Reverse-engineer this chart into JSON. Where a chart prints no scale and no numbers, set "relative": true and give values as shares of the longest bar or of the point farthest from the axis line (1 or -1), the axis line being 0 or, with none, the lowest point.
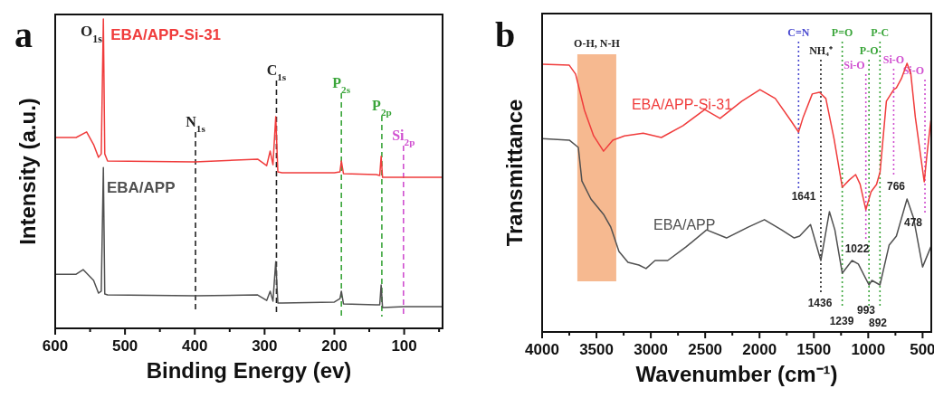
{
  "chart_data": [
    {
      "type": "line",
      "title": "a",
      "xlabel": "Binding Energy (ev)",
      "ylabel": "Intensity (a.u.)",
      "relative": true,
      "tick_labels": "x",
      "xlim": [
        600,
        45
      ],
      "xticks": [
        600,
        {
          "value": 550,
          "label": null
        },
        500,
        {
          "value": 450,
          "label": null
        },
        400,
        {
          "value": 350,
          "label": null
        },
        300,
        {
          "value": 250,
          "label": null
        },
        200,
        {
          "value": 150,
          "label": null
        },
        100,
        {
          "value": 50,
          "label": null
        }
      ],
      "series": [
        {
          "name": "EBA/APP-Si-31",
          "color": "#f03c3c",
          "x": [
            600,
            570,
            555,
            545,
            538,
            534,
            531,
            529,
            525,
            400,
            310,
            297,
            292,
            288,
            284,
            281,
            275,
            200,
            192,
            190,
            187,
            140,
            135,
            133,
            131,
            100,
            45
          ],
          "values": [
            0.617,
            0.617,
            0.635,
            0.594,
            0.553,
            0.564,
            1.0,
            0.564,
            0.541,
            0.538,
            0.547,
            0.526,
            0.573,
            0.529,
            0.684,
            0.506,
            0.503,
            0.503,
            0.506,
            0.541,
            0.5,
            0.497,
            0.494,
            0.556,
            0.488,
            0.488,
            0.488
          ]
        },
        {
          "name": "EBA/APP",
          "color": "#505050",
          "x": [
            600,
            570,
            560,
            545,
            538,
            534,
            531,
            529,
            525,
            400,
            310,
            297,
            292,
            288,
            284,
            281,
            275,
            200,
            192,
            190,
            187,
            140,
            135,
            133,
            131,
            100,
            45
          ],
          "values": [
            0.175,
            0.175,
            0.19,
            0.155,
            0.114,
            0.12,
            0.52,
            0.111,
            0.108,
            0.105,
            0.108,
            0.09,
            0.12,
            0.088,
            0.216,
            0.082,
            0.082,
            0.085,
            0.096,
            0.12,
            0.079,
            0.076,
            0.076,
            0.14,
            0.067,
            0.07,
            0.07
          ]
        }
      ],
      "ref_lines": [
        {
          "axis": "x",
          "value": 399,
          "label": "N$_{1s}$",
          "color": "#222222",
          "line_style": "dashed"
        },
        {
          "axis": "x",
          "value": 283,
          "label": "C$_{1s}$",
          "color": "#222222",
          "line_style": "dashed"
        },
        {
          "axis": "x",
          "value": 190,
          "label": "P$_{2s}$",
          "color": "#3aa53a",
          "line_style": "dashed"
        },
        {
          "axis": "x",
          "value": 132,
          "label": "P$_{2p}$",
          "color": "#3aa53a",
          "line_style": "dashed"
        },
        {
          "axis": "x",
          "value": 101,
          "label": "Si$_{2p}$",
          "color": "#d050d0",
          "line_style": "dashed"
        }
      ],
      "annotations": [
        "O$_{1s}$"
      ]
    },
    {
      "type": "line",
      "title": "b",
      "xlabel": "Wavenumber (cm⁻¹)",
      "ylabel": "Transmittance",
      "relative": true,
      "tick_labels": "x",
      "xlim": [
        4000,
        420
      ],
      "xticks": [
        4000,
        {
          "value": 3750,
          "label": null
        },
        3500,
        {
          "value": 3250,
          "label": null
        },
        3000,
        {
          "value": 2750,
          "label": null
        },
        2500,
        {
          "value": 2250,
          "label": null
        },
        2000,
        {
          "value": 1750,
          "label": null
        },
        1500,
        {
          "value": 1250,
          "label": null
        },
        1000,
        {
          "value": 750,
          "label": null
        },
        500
      ],
      "series": [
        {
          "name": "EBA/APP-Si-31",
          "color": "#f03c3c",
          "x": [
            4000,
            3750,
            3692,
            3610,
            3526,
            3435,
            3350,
            3243,
            3070,
            2903,
            2703,
            2504,
            2363,
            2163,
            1996,
            1855,
            1714,
            1641,
            1598,
            1515,
            1449,
            1390,
            1315,
            1239,
            1174,
            1116,
            1075,
            1022,
            974,
            924,
            891,
            833,
            766,
            741,
            695,
            643,
            608,
            567,
            485,
            459,
            425
          ],
          "values": [
            0.997,
            0.993,
            0.96,
            0.825,
            0.73,
            0.673,
            0.714,
            0.73,
            0.74,
            0.724,
            0.768,
            0.828,
            0.795,
            0.859,
            0.902,
            0.869,
            0.788,
            0.744,
            0.8,
            0.886,
            0.892,
            0.869,
            0.72,
            0.539,
            0.566,
            0.586,
            0.55,
            0.455,
            0.522,
            0.549,
            0.596,
            0.859,
            0.902,
            0.909,
            0.943,
            1.0,
            0.96,
            0.8,
            0.559,
            0.663,
            0.785
          ]
        },
        {
          "name": "EBA/APP",
          "color": "#505050",
          "x": [
            4000,
            3750,
            3667,
            3634,
            3551,
            3435,
            3368,
            3293,
            3210,
            3110,
            3044,
            2961,
            2845,
            2678,
            2487,
            2304,
            2105,
            1955,
            1797,
            1681,
            1631,
            1531,
            1436,
            1357,
            1307,
            1239,
            1149,
            1091,
            993,
            966,
            892,
            808,
            741,
            643,
            583,
            500,
            425
          ],
          "values": [
            0.72,
            0.714,
            0.687,
            0.562,
            0.495,
            0.438,
            0.39,
            0.3,
            0.259,
            0.249,
            0.236,
            0.266,
            0.266,
            0.316,
            0.38,
            0.35,
            0.39,
            0.418,
            0.38,
            0.35,
            0.357,
            0.4,
            0.266,
            0.448,
            0.38,
            0.219,
            0.266,
            0.253,
            0.175,
            0.192,
            0.175,
            0.323,
            0.357,
            0.495,
            0.424,
            0.242,
            0.316
          ]
        }
      ],
      "bands": [
        {
          "axis": "x",
          "from": 3676,
          "to": 3318,
          "label": "O-H, N-H",
          "color": "#f6b990"
        }
      ],
      "ref_lines": [
        {
          "axis": "x",
          "value": 1641,
          "label": "C=N",
          "color": "#4a4ad0",
          "line_style": "dotted"
        },
        {
          "axis": "x",
          "value": 1436,
          "label": "NH₄⁺",
          "color": "#222222",
          "line_style": "dotted"
        },
        {
          "axis": "x",
          "value": 1239,
          "label": "P=O",
          "color": "#3aa53a",
          "line_style": "dotted"
        },
        {
          "axis": "x",
          "value": 1022,
          "label": "Si-O",
          "color": "#d050d0",
          "line_style": "dotted"
        },
        {
          "axis": "x",
          "value": 993,
          "label": "P-O",
          "color": "#3aa53a",
          "line_style": "dotted"
        },
        {
          "axis": "x",
          "value": 892,
          "label": "P-C",
          "color": "#3aa53a",
          "line_style": "dotted"
        },
        {
          "axis": "x",
          "value": 766,
          "label": "Si-O",
          "color": "#d050d0",
          "line_style": "dotted"
        },
        {
          "axis": "x",
          "value": 478,
          "label": "Si-O",
          "color": "#d050d0",
          "line_style": "dotted"
        }
      ],
      "annotations": [
        "1641",
        "1436",
        "1239",
        "1022",
        "993",
        "892",
        "766",
        "478"
      ]
    }
  ]
}
